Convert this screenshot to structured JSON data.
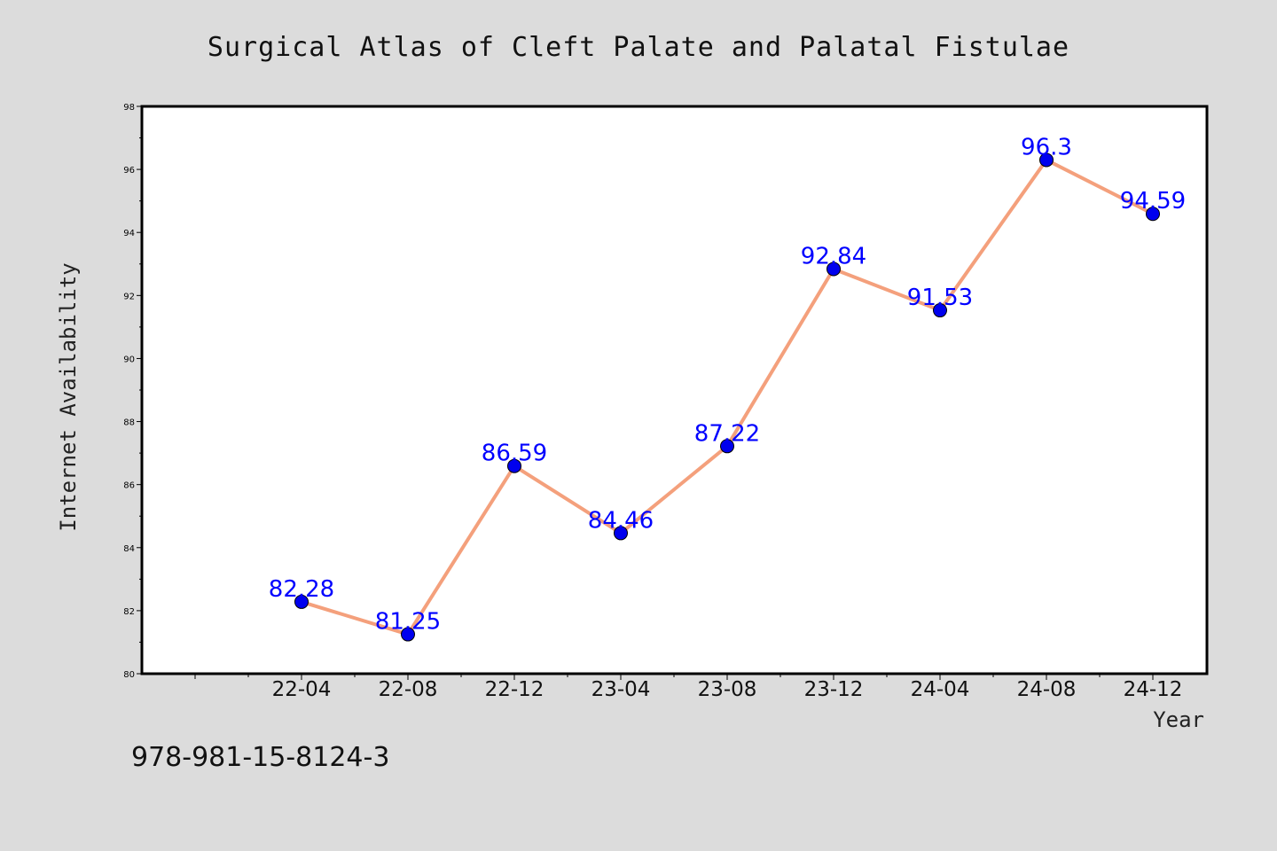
{
  "chart_data": {
    "type": "line",
    "title": "Surgical Atlas of Cleft Palate and Palatal Fistulae",
    "xlabel": "Year",
    "ylabel": "Internet Availability",
    "categories": [
      "22-04",
      "22-08",
      "22-12",
      "23-04",
      "23-08",
      "23-12",
      "24-04",
      "24-08",
      "24-12"
    ],
    "series": [
      {
        "values": [
          82.28,
          81.25,
          86.59,
          84.46,
          87.22,
          92.84,
          91.53,
          96.3,
          94.59
        ]
      }
    ],
    "data_labels": [
      "82.28",
      "81.25",
      "86.59",
      "84.46",
      "87.22",
      "92.84",
      "91.53",
      "96.3",
      "94.59"
    ],
    "ylim": [
      80,
      98
    ],
    "yticks": [
      "80",
      "82",
      "84",
      "86",
      "88",
      "90",
      "92",
      "94",
      "96",
      "98"
    ],
    "grid": false,
    "legend": "none",
    "colors": {
      "line": "#f4a07c",
      "marker": "#0000ee",
      "data_label": "#0000ff",
      "background": "#dcdcdc",
      "plot_area": "#ffffff"
    }
  },
  "footer": {
    "isbn": "978-981-15-8124-3"
  }
}
